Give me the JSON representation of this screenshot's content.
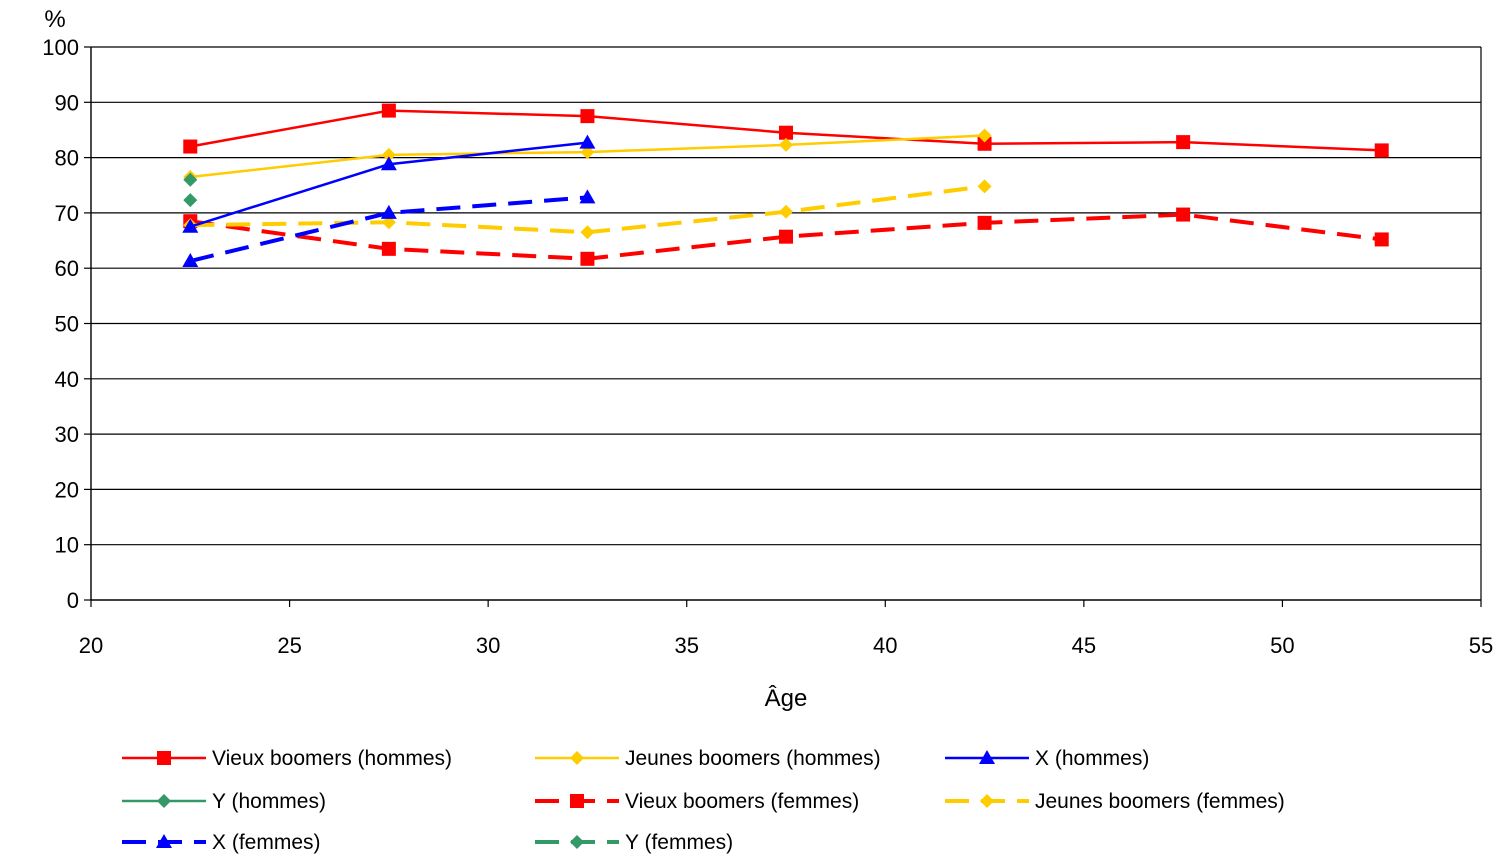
{
  "chart_data": {
    "type": "line",
    "title": "",
    "xlabel": "Âge",
    "ylabel": "%",
    "xlim": [
      20,
      55
    ],
    "ylim": [
      0,
      100
    ],
    "x_ticks": [
      "20",
      "25",
      "30",
      "35",
      "40",
      "45",
      "50",
      "55"
    ],
    "y_ticks": [
      "0",
      "10",
      "20",
      "30",
      "40",
      "50",
      "60",
      "70",
      "80",
      "90",
      "100"
    ],
    "grid": "horizontal",
    "legend_position": "bottom",
    "series": [
      {
        "name": "Vieux boomers (hommes)",
        "color": "#ff0000",
        "dash": "solid",
        "marker": "square",
        "points": [
          [
            22.5,
            82
          ],
          [
            27.5,
            88.5
          ],
          [
            32.5,
            87.5
          ],
          [
            37.5,
            84.5
          ],
          [
            42.5,
            82.5
          ],
          [
            47.5,
            82.8
          ],
          [
            52.5,
            81.3
          ]
        ]
      },
      {
        "name": "Jeunes boomers (hommes)",
        "color": "#ffcc00",
        "dash": "solid",
        "marker": "diamond",
        "points": [
          [
            22.5,
            76.5
          ],
          [
            27.5,
            80.5
          ],
          [
            32.5,
            81
          ],
          [
            37.5,
            82.3
          ],
          [
            42.5,
            84
          ]
        ]
      },
      {
        "name": "X (hommes)",
        "color": "#0000ff",
        "dash": "solid",
        "marker": "triangle",
        "points": [
          [
            22.5,
            67.5
          ],
          [
            27.5,
            78.8
          ],
          [
            32.5,
            82.7
          ]
        ]
      },
      {
        "name": "Y (hommes)",
        "color": "#339966",
        "dash": "solid",
        "marker": "diamond",
        "points": [
          [
            22.5,
            76
          ]
        ]
      },
      {
        "name": "Vieux boomers (femmes)",
        "color": "#ff0000",
        "dash": "dashed",
        "marker": "square",
        "points": [
          [
            22.5,
            68.5
          ],
          [
            27.5,
            63.5
          ],
          [
            32.5,
            61.7
          ],
          [
            37.5,
            65.7
          ],
          [
            42.5,
            68.2
          ],
          [
            47.5,
            69.7
          ],
          [
            52.5,
            65.2
          ]
        ]
      },
      {
        "name": "Jeunes boomers (femmes)",
        "color": "#ffcc00",
        "dash": "dashed",
        "marker": "diamond",
        "points": [
          [
            22.5,
            67.8
          ],
          [
            27.5,
            68.3
          ],
          [
            32.5,
            66.5
          ],
          [
            37.5,
            70.2
          ],
          [
            42.5,
            74.8
          ]
        ]
      },
      {
        "name": "X (femmes)",
        "color": "#0000ff",
        "dash": "dashed",
        "marker": "triangle",
        "points": [
          [
            22.5,
            61.3
          ],
          [
            27.5,
            70
          ],
          [
            32.5,
            72.8
          ]
        ]
      },
      {
        "name": "Y (femmes)",
        "color": "#339966",
        "dash": "dashed",
        "marker": "diamond",
        "points": [
          [
            22.5,
            72.3
          ]
        ]
      }
    ]
  }
}
